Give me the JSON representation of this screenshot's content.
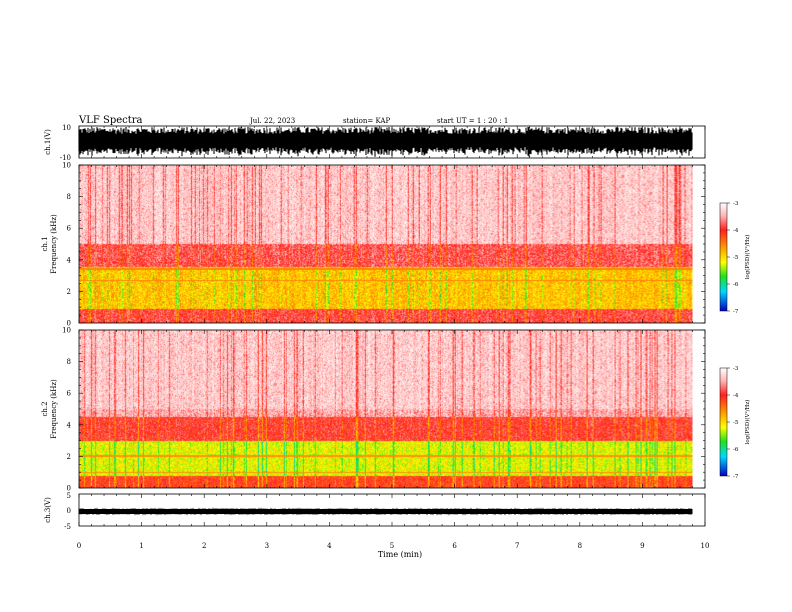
{
  "header": {
    "title": "VLF Spectra",
    "date": "Jul. 22, 2023",
    "station": "station= KAP",
    "start": "start UT =  1 : 20 : 1"
  },
  "chart_data": [
    {
      "type": "line",
      "panel": "ch1-waveform",
      "ylabel": "ch.1(V)",
      "ylim": [
        -10,
        10
      ],
      "yticks": [
        "10",
        "-10"
      ],
      "xlim": [
        0,
        10
      ],
      "color": "#000000"
    },
    {
      "type": "heatmap",
      "panel": "ch1-spectrogram",
      "ylabel_line1": "ch.1",
      "ylabel_line2": "Frequency (kHz)",
      "ylim": [
        0,
        10
      ],
      "yticks": [
        "0",
        "2",
        "4",
        "6",
        "8",
        "10"
      ],
      "xlim": [
        0,
        10
      ],
      "colorbar": {
        "label": "log(PSD)(V²/Hz)",
        "range": [
          -7,
          -3
        ],
        "ticks": [
          "-3",
          "-4",
          "-5",
          "-6",
          "-7"
        ]
      }
    },
    {
      "type": "heatmap",
      "panel": "ch2-spectrogram",
      "ylabel_line1": "ch.2",
      "ylabel_line2": "Frequency (kHz)",
      "ylim": [
        0,
        10
      ],
      "yticks": [
        "0",
        "2",
        "4",
        "6",
        "8",
        "10"
      ],
      "xlim": [
        0,
        10
      ],
      "colorbar": {
        "label": "log(PSD)(V²/Hz)",
        "range": [
          -7,
          -3
        ],
        "ticks": [
          "-3",
          "-4",
          "-5",
          "-6",
          "-7"
        ]
      }
    },
    {
      "type": "line",
      "panel": "ch3-waveform",
      "ylabel": "ch.3(V)",
      "ylim": [
        -5,
        5
      ],
      "yticks": [
        "5",
        "0",
        "-5"
      ],
      "xlim": [
        0,
        10
      ],
      "xlabel": "Time (min)",
      "xticks": [
        "0",
        "1",
        "2",
        "3",
        "4",
        "5",
        "6",
        "7",
        "8",
        "9",
        "10"
      ],
      "data_end_min": 9.8,
      "color": "#000000"
    }
  ],
  "colors": {
    "white": "#ffffff",
    "light_red": "#ffcaca",
    "red": "#ff2a2a",
    "orange": "#ff9a00",
    "yellow": "#e8e800",
    "green": "#22e022",
    "cyan": "#00d8ff",
    "blue": "#0000cc"
  }
}
